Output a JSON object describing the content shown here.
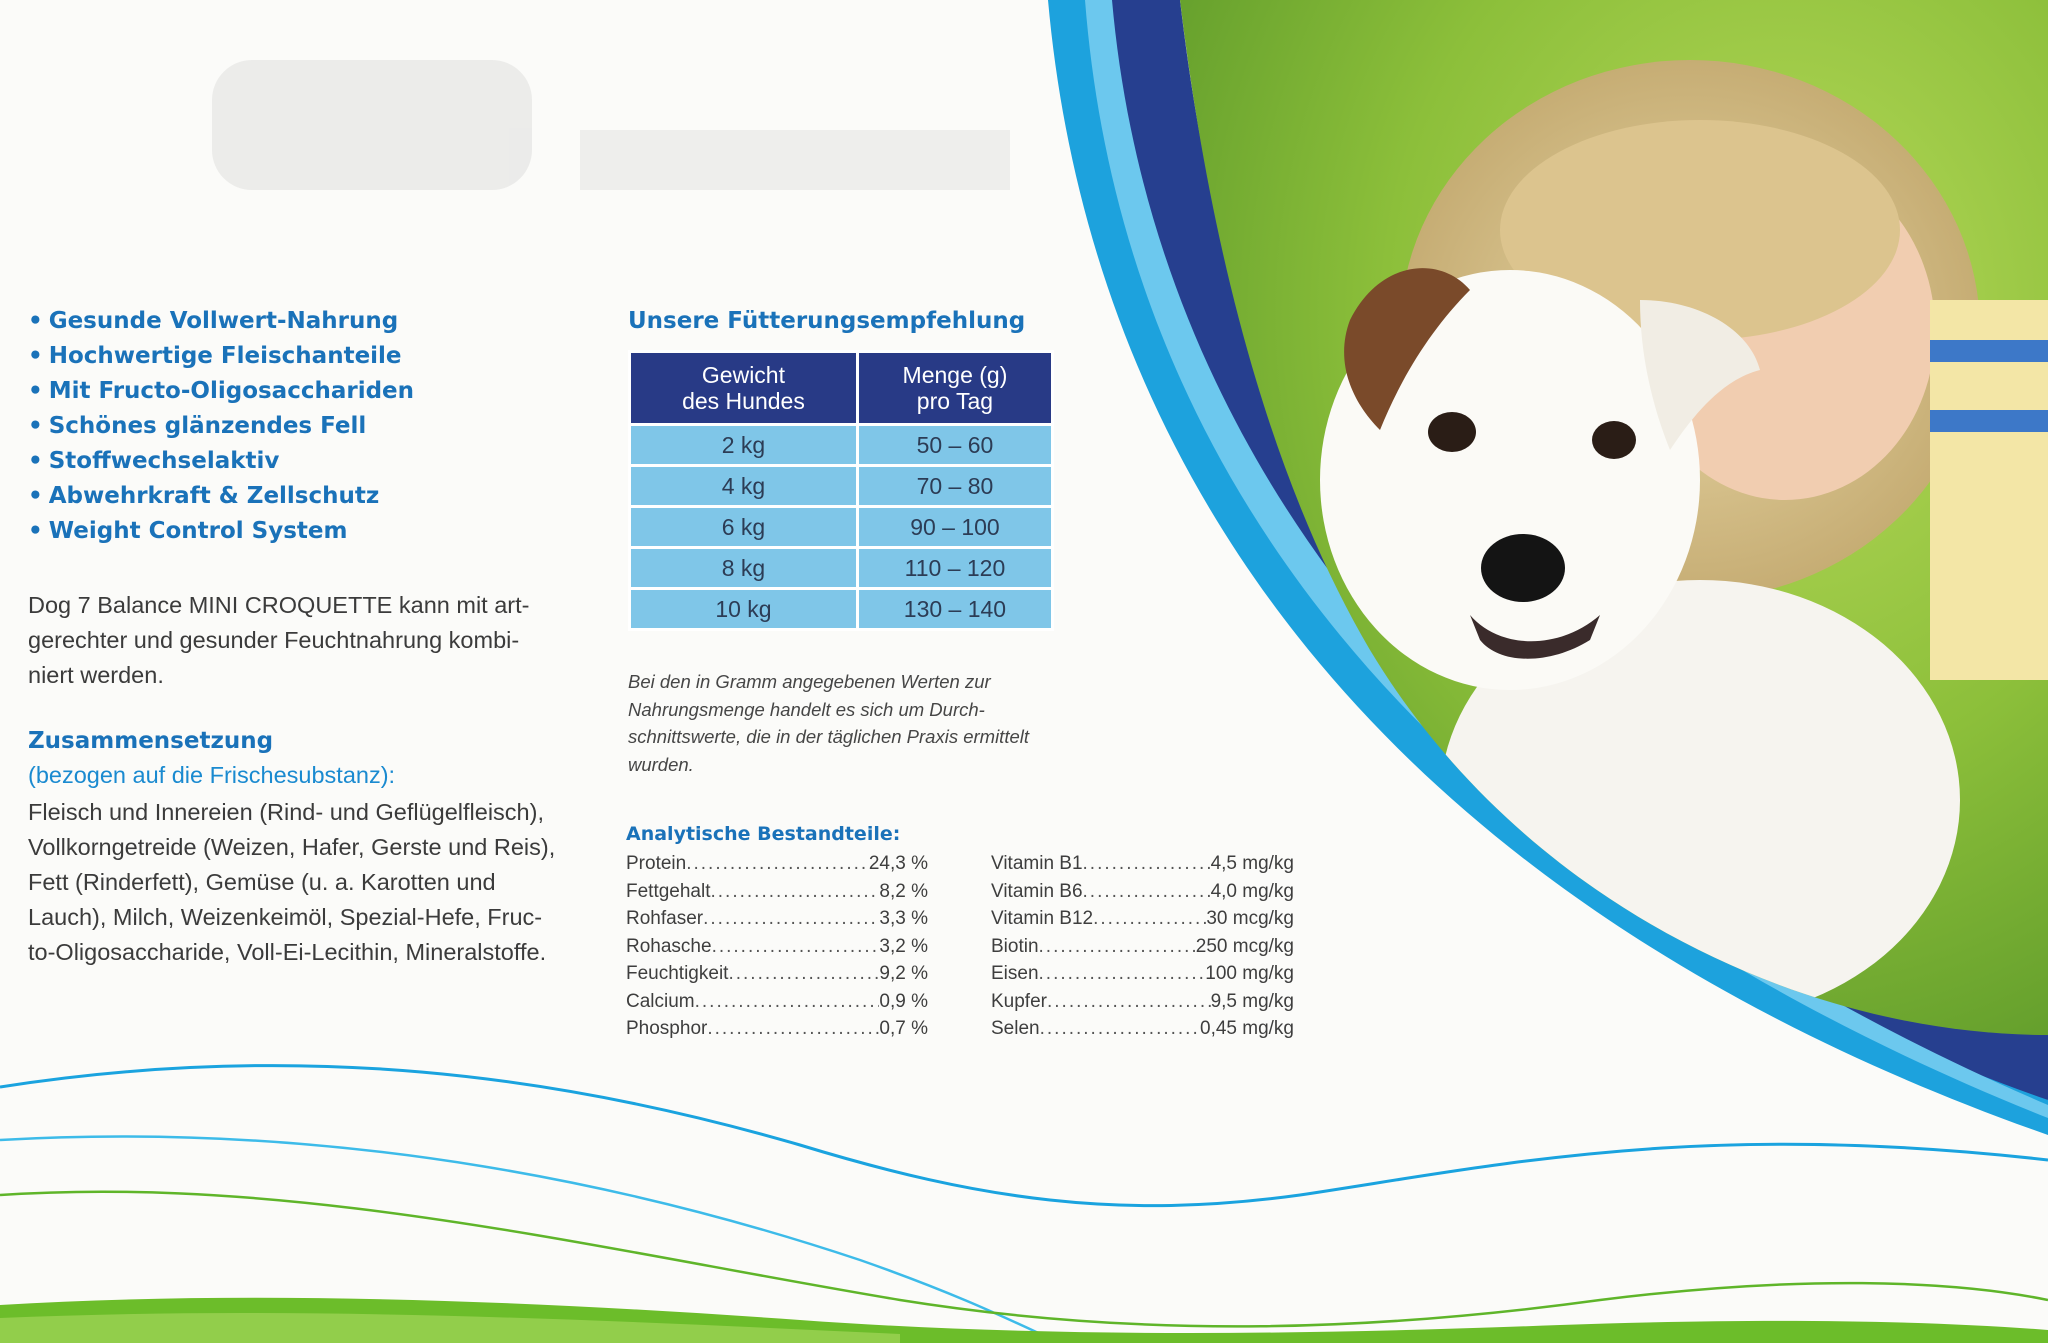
{
  "bullets": [
    "Gesunde Vollwert-Nahrung",
    "Hochwertige Fleischanteile",
    "Mit Fructo-Oligosaccharide​n",
    "Schönes glänzendes Fell",
    "Stoffwechselaktiv",
    "Abwehrkraft & Zellschutz",
    "Weight Control System"
  ],
  "combination_lines": [
    "Dog 7 Balance MINI CROQUETTE kann mit art-",
    "gerechter und gesunder Feuchtnahrung kombi-",
    "niert werden."
  ],
  "composition": {
    "title": "Zusammensetzung",
    "subtitle": "(bezogen auf die Frischesubstanz):",
    "lines": [
      "Fleisch und Innereien (Rind- und Geflügelfleisch),",
      "Vollkorngetreide (Weizen, Hafer, Gerste und Reis),",
      "Fett (Rinderfett), Gemüse (u. a. Karotten und",
      "Lauch), Milch, Weizenkeimöl, Spezial-Hefe, Fruc-",
      "to-Oligosaccharide, Voll-Ei-Lecithin, Mineralstoffe."
    ]
  },
  "feeding": {
    "title": "Unsere Fütterungsempfehlung",
    "header_weight": [
      "Gewicht",
      "des Hundes"
    ],
    "header_amount": [
      "Menge (g)",
      "pro Tag"
    ],
    "rows": [
      {
        "weight": "2 kg",
        "amount": "50 – 60"
      },
      {
        "weight": "4 kg",
        "amount": "70 – 80"
      },
      {
        "weight": "6 kg",
        "amount": "90 – 100"
      },
      {
        "weight": "8 kg",
        "amount": "110 – 120"
      },
      {
        "weight": "10 kg",
        "amount": "130 – 140"
      }
    ],
    "note_lines": [
      "Bei den in Gramm angegebenen Werten zur",
      "Nahrungsmenge handelt es sich um Durch-",
      "schnittswerte, die in der täglichen Praxis ermittelt",
      "wurden."
    ]
  },
  "analytical": {
    "title": "Analytische Bestandteile:",
    "left": [
      {
        "name": "Protein",
        "value": "24,3 %"
      },
      {
        "name": "Fettgehalt",
        "value": "8,2 %"
      },
      {
        "name": "Rohfaser",
        "value": "3,3 %"
      },
      {
        "name": "Rohasche",
        "value": "3,2 %"
      },
      {
        "name": "Feuchtigkeit",
        "value": "9,2 %"
      },
      {
        "name": "Calcium",
        "value": "0,9 %"
      },
      {
        "name": "Phosphor",
        "value": "0,7 %"
      }
    ],
    "right": [
      {
        "name": "Vitamin B1",
        "value": "4,5 mg/kg"
      },
      {
        "name": "Vitamin B6",
        "value": "4,0 mg/kg"
      },
      {
        "name": "Vitamin B12",
        "value": "30 mcg/kg"
      },
      {
        "name": "Biotin",
        "value": "250 mcg/kg"
      },
      {
        "name": "Eisen",
        "value": "100 mg/kg"
      },
      {
        "name": "Kupfer",
        "value": "9,5 mg/kg"
      },
      {
        "name": "Selen",
        "value": "0,45 mg/kg"
      }
    ]
  },
  "colors": {
    "accent_blue": "#1a72b9",
    "table_header": "#283a86",
    "table_cell": "#7fc6e8",
    "swoosh_blue": "#1aa3df",
    "swoosh_green": "#6cbd2a"
  }
}
